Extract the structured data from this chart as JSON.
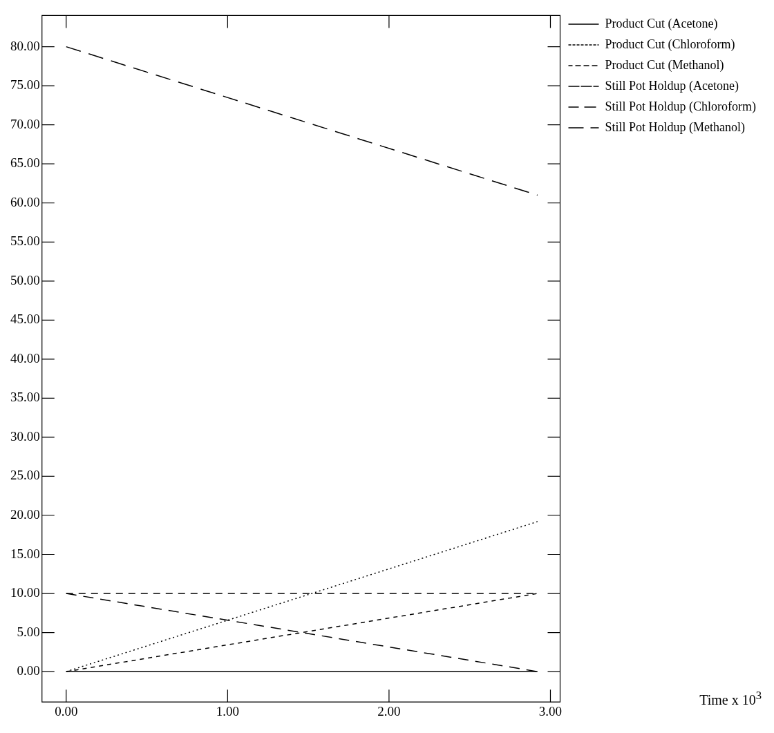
{
  "chart_data": {
    "type": "line",
    "annotations": [
      "Time x 10$^{3}$"
    ],
    "x": [
      0,
      2.92
    ],
    "series": [
      {
        "name": "Product Cut (Acetone)",
        "color": "#000000",
        "line_style": "solid",
        "values": [
          0,
          0
        ]
      },
      {
        "name": "Product Cut (Chloroform)",
        "color": "#000000",
        "line_style": "dotted",
        "values": [
          0,
          19.2
        ]
      },
      {
        "name": "Product Cut (Methanol)",
        "color": "#000000",
        "line_style": "dashed",
        "values": [
          0,
          10
        ]
      },
      {
        "name": "Still Pot Holdup (Acetone)",
        "color": "#000000",
        "line_style": "dashed",
        "values": [
          10,
          10
        ]
      },
      {
        "name": "Still Pot Holdup (Chloroform)",
        "color": "#000000",
        "line_style": "dashed",
        "values": [
          10,
          0
        ]
      },
      {
        "name": "Still Pot Holdup (Methanol)",
        "color": "#000000",
        "line_style": "dashed",
        "values": [
          80,
          61
        ]
      }
    ],
    "xlim": [
      -0.15,
      3.06
    ],
    "ylim": [
      -3.9,
      84
    ],
    "xticks": [
      {
        "value": 0,
        "label": "0.00"
      },
      {
        "value": 1,
        "label": "1.00"
      },
      {
        "value": 2,
        "label": "2.00"
      },
      {
        "value": 3,
        "label": "3.00"
      }
    ],
    "yticks": [
      {
        "value": 0,
        "label": "0.00"
      },
      {
        "value": 5,
        "label": "5.00"
      },
      {
        "value": 10,
        "label": "10.00"
      },
      {
        "value": 15,
        "label": "15.00"
      },
      {
        "value": 20,
        "label": "20.00"
      },
      {
        "value": 25,
        "label": "25.00"
      },
      {
        "value": 30,
        "label": "30.00"
      },
      {
        "value": 35,
        "label": "35.00"
      },
      {
        "value": 40,
        "label": "40.00"
      },
      {
        "value": 45,
        "label": "45.00"
      },
      {
        "value": 50,
        "label": "50.00"
      },
      {
        "value": 55,
        "label": "55.00"
      },
      {
        "value": 60,
        "label": "60.00"
      },
      {
        "value": 65,
        "label": "65.00"
      },
      {
        "value": 70,
        "label": "70.00"
      },
      {
        "value": 75,
        "label": "75.00"
      },
      {
        "value": 80,
        "label": "80.00"
      }
    ],
    "grid": false,
    "legend": "top right",
    "marker": "none"
  }
}
